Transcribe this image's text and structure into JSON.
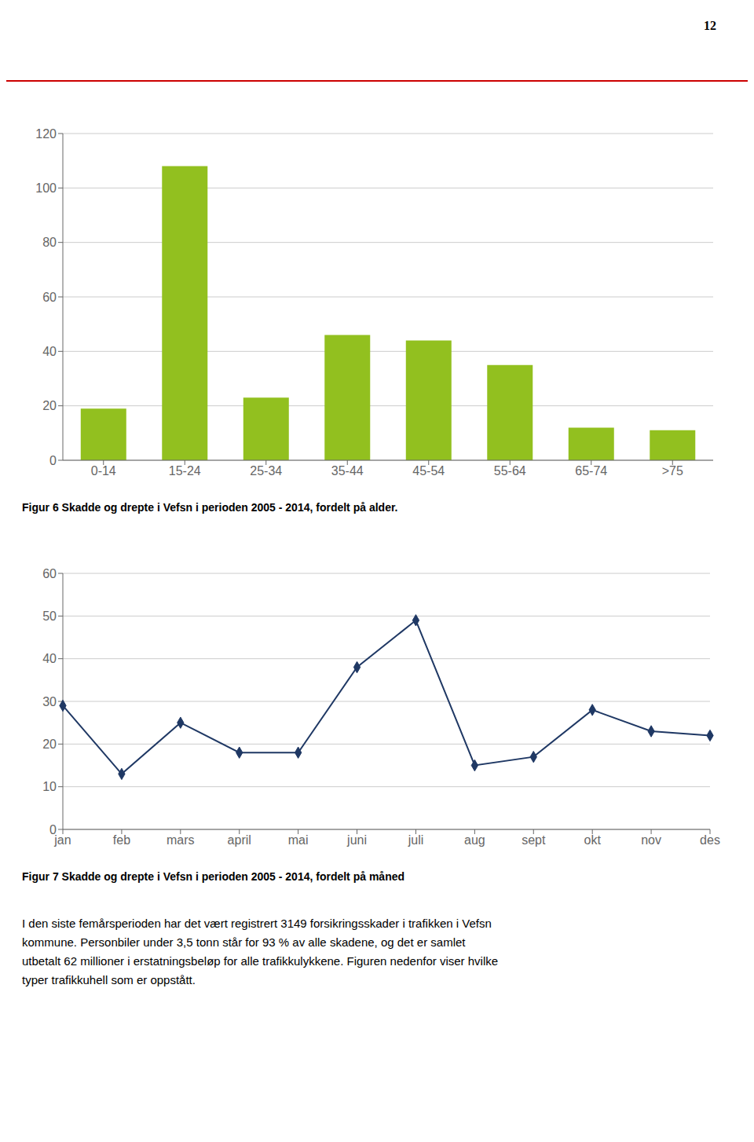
{
  "chart_data": [
    {
      "type": "bar",
      "title": "Figur 6 Skadde og drepte i Vefsn i perioden 2005 - 2014, fordelt på alder.",
      "categories": [
        "0-14",
        "15-24",
        "25-34",
        "35-44",
        "45-54",
        "55-64",
        "65-74",
        ">75"
      ],
      "values": [
        19,
        108,
        23,
        46,
        44,
        35,
        12,
        11
      ],
      "color": "#92c01f",
      "ylim": [
        0,
        120
      ],
      "yticks": [
        0,
        20,
        40,
        60,
        80,
        100,
        120
      ],
      "grid": true,
      "annotations": [
        "12"
      ]
    },
    {
      "type": "line",
      "title": "Figur 7 Skadde og drepte i Vefsn i perioden 2005 - 2014, fordelt på måned",
      "categories": [
        "jan",
        "feb",
        "mars",
        "april",
        "mai",
        "juni",
        "juli",
        "aug",
        "sept",
        "okt",
        "nov",
        "des"
      ],
      "values": [
        29,
        13,
        25,
        18,
        18,
        38,
        49,
        15,
        17,
        28,
        23,
        22
      ],
      "color": "#1f3864",
      "marker": "diamond",
      "ylim": [
        0,
        60
      ],
      "yticks": [
        0,
        10,
        20,
        30,
        40,
        50,
        60
      ],
      "grid": true,
      "annotations": [
        "I den siste femårsperioden har det vært registrert 3149 forsikringsskader i trafikken i Vefsn",
        "kommune. Personbiler under 3,5 tonn står for 93 % av alle skadene, og det er samlet",
        "utbetalt 62 millioner i erstatningsbeløp for alle trafikkulykkene. Figuren nedenfor viser hvilke",
        "typer trafikkuhell som er oppstått."
      ]
    }
  ]
}
